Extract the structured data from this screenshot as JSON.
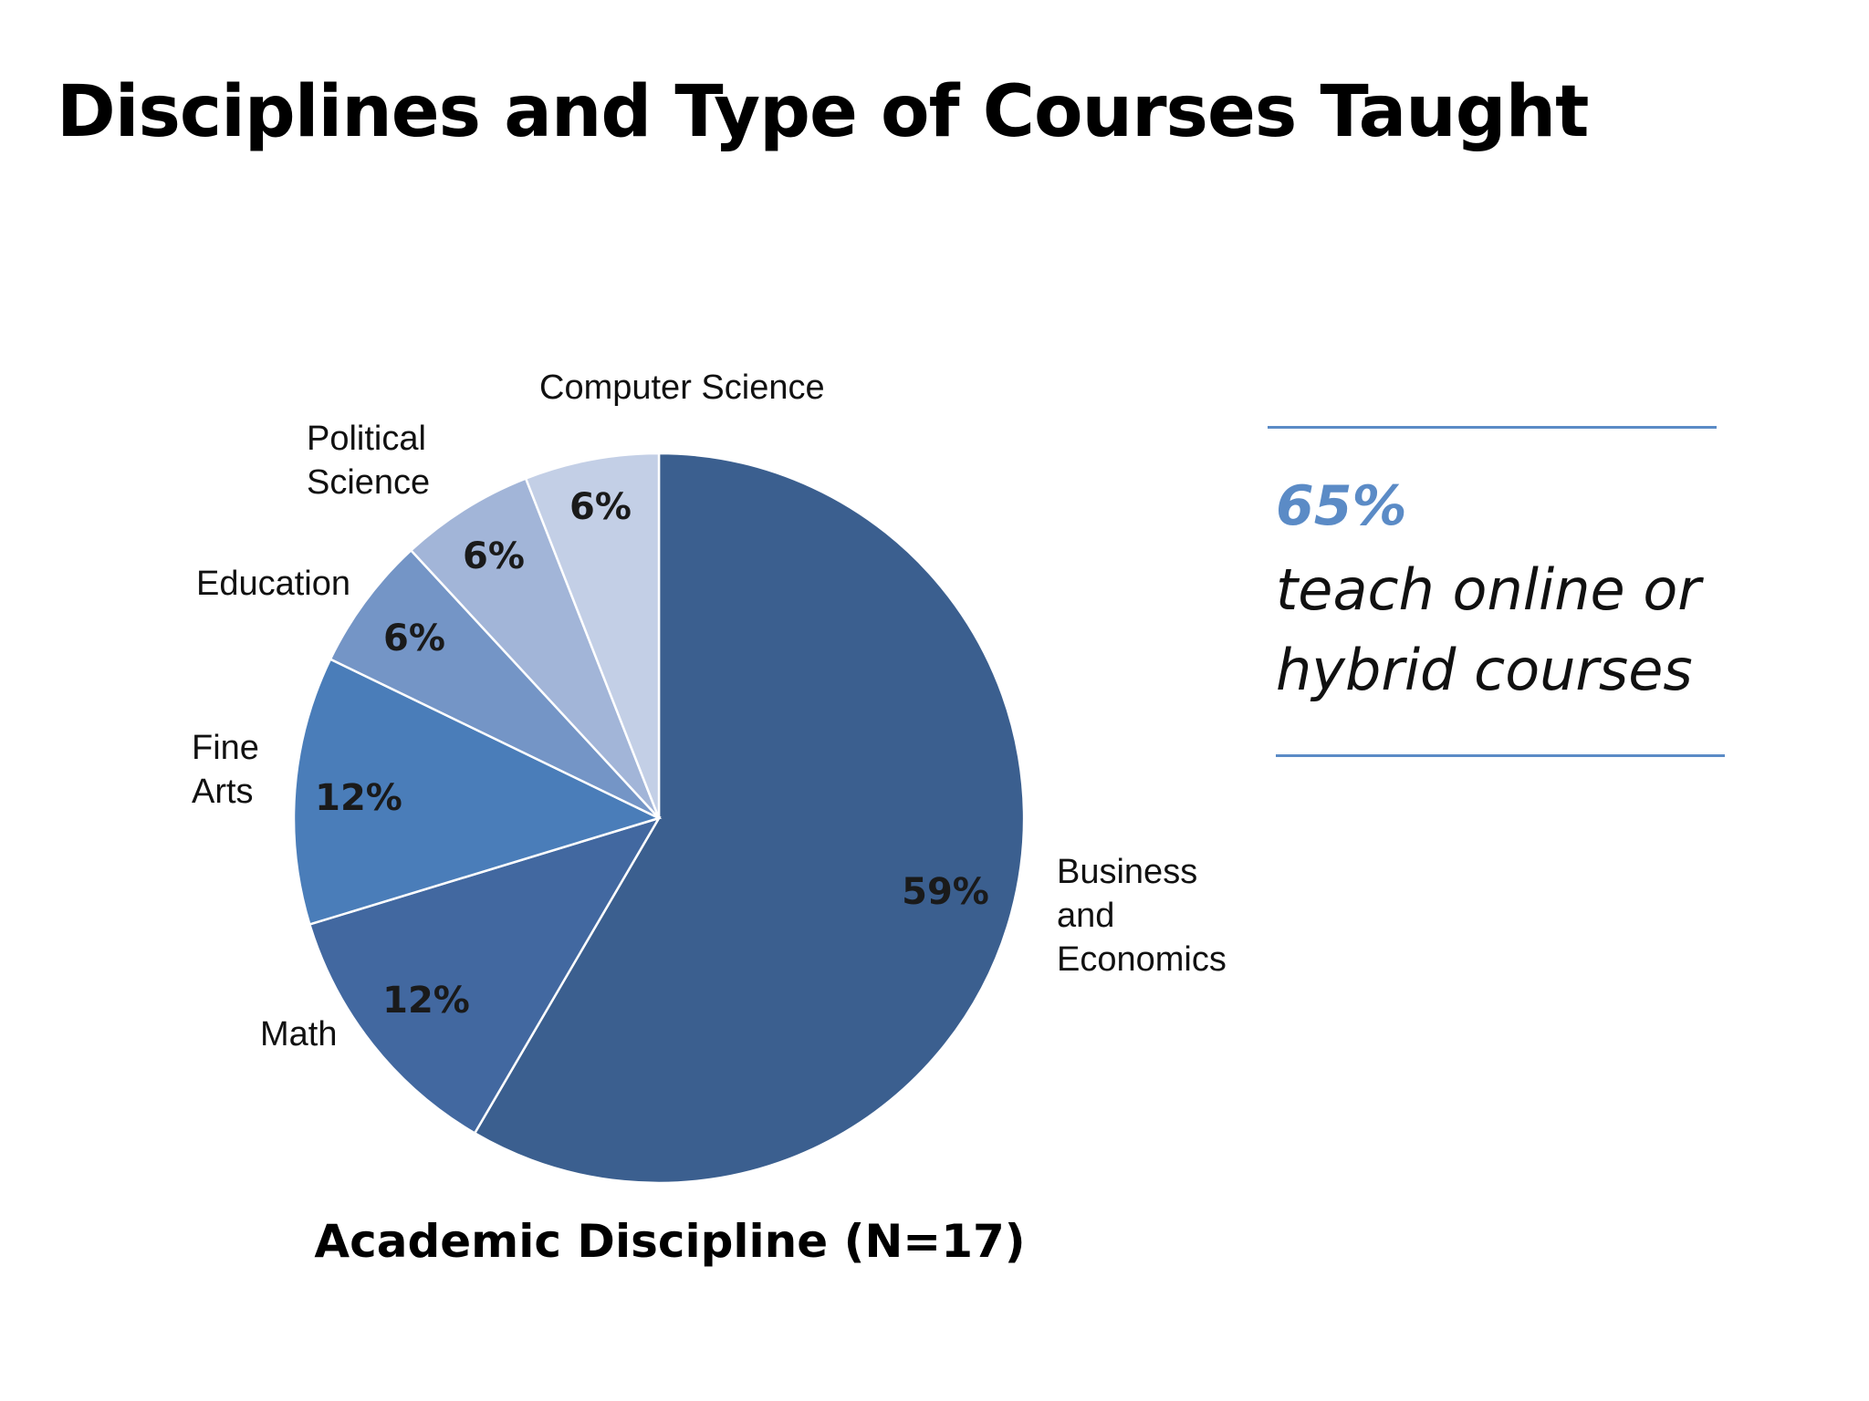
{
  "slide": {
    "title": "Disciplines and Type of Courses Taught"
  },
  "callout": {
    "value": "65%",
    "line1": "teach online or",
    "line2": "hybrid courses",
    "accent_color": "#5b8bc6"
  },
  "chart_data": {
    "type": "pie",
    "title": "Academic Discipline (N=17)",
    "start": "12 o'clock, clockwise",
    "slices": [
      {
        "label": [
          "Business",
          "and",
          "Economics"
        ],
        "value": 59,
        "pct_label": "59%",
        "color": "#3b5f8f"
      },
      {
        "label": [
          "Math"
        ],
        "value": 12,
        "pct_label": "12%",
        "color": "#4268a0"
      },
      {
        "label": [
          "Fine",
          "Arts"
        ],
        "value": 12,
        "pct_label": "12%",
        "color": "#4a7db9"
      },
      {
        "label": [
          "Education"
        ],
        "value": 6,
        "pct_label": "6%",
        "color": "#7495c6"
      },
      {
        "label": [
          "Political",
          "Science"
        ],
        "value": 6,
        "pct_label": "6%",
        "color": "#a2b5d8"
      },
      {
        "label": [
          "Computer Science"
        ],
        "value": 6,
        "pct_label": "6%",
        "color": "#c3cfe6"
      }
    ]
  }
}
